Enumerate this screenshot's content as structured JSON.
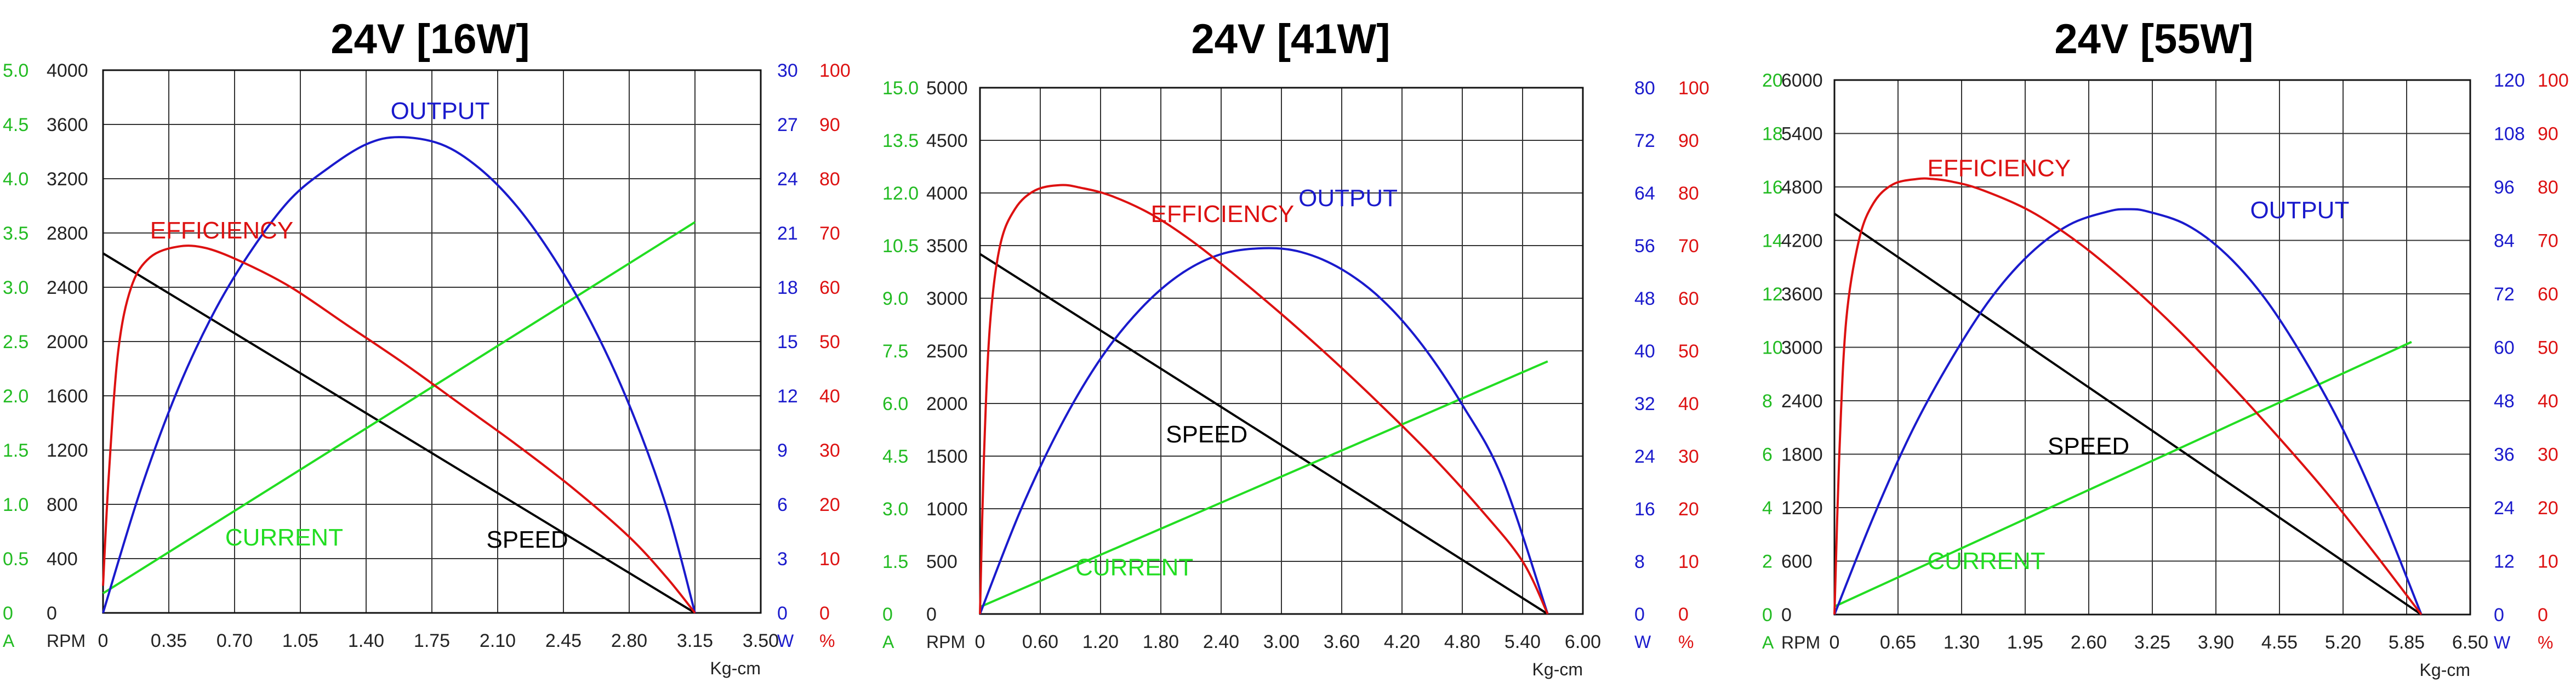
{
  "chart_data": [
    {
      "type": "line",
      "title": "24V [16W]",
      "xlabel": "Kg-cm",
      "x_ticks": [
        "0",
        "0.35",
        "0.70",
        "1.05",
        "1.40",
        "1.75",
        "2.10",
        "2.45",
        "2.80",
        "3.15",
        "3.50"
      ],
      "xlim": [
        0,
        3.5
      ],
      "left_axes": [
        {
          "unit": "A",
          "color": "#22bb22",
          "ticks": [
            "0",
            "0.5",
            "1.0",
            "1.5",
            "2.0",
            "2.5",
            "3.0",
            "3.5",
            "4.0",
            "4.5",
            "5.0"
          ],
          "range": [
            0,
            5
          ]
        },
        {
          "unit": "RPM",
          "color": "#222222",
          "ticks": [
            "0",
            "400",
            "800",
            "1200",
            "1600",
            "2000",
            "2400",
            "2800",
            "3200",
            "3600",
            "4000"
          ],
          "range": [
            0,
            4000
          ]
        }
      ],
      "right_axes": [
        {
          "unit": "W",
          "color": "#1a1acc",
          "ticks": [
            "0",
            "3",
            "6",
            "9",
            "12",
            "15",
            "18",
            "21",
            "24",
            "27",
            "30"
          ],
          "range": [
            0,
            30
          ]
        },
        {
          "unit": "%",
          "color": "#dd1111",
          "ticks": [
            "0",
            "10",
            "20",
            "30",
            "40",
            "50",
            "60",
            "70",
            "80",
            "90",
            "100"
          ],
          "range": [
            0,
            100
          ]
        }
      ],
      "series": [
        {
          "name": "SPEED",
          "axis": "RPM",
          "color": "#000000",
          "x": [
            0,
            3.15
          ],
          "y": [
            2650,
            0
          ]
        },
        {
          "name": "CURRENT",
          "axis": "A",
          "color": "#22dd22",
          "x": [
            0,
            3.15
          ],
          "y": [
            0.18,
            3.6
          ]
        },
        {
          "name": "OUTPUT",
          "axis": "W",
          "color": "#1a1acc",
          "x": [
            0,
            0.2,
            0.4,
            0.6,
            0.8,
            1.0,
            1.2,
            1.4,
            1.575,
            1.8,
            2.0,
            2.2,
            2.4,
            2.6,
            2.8,
            3.0,
            3.15
          ],
          "y": [
            0,
            6.8,
            12.4,
            16.8,
            20.2,
            22.9,
            24.6,
            25.9,
            26.3,
            25.9,
            24.6,
            22.5,
            19.6,
            16.0,
            11.5,
            5.8,
            0
          ]
        },
        {
          "name": "EFFICIENCY",
          "axis": "%",
          "color": "#dd1111",
          "x": [
            0,
            0.03,
            0.08,
            0.15,
            0.25,
            0.4,
            0.55,
            0.75,
            1.0,
            1.3,
            1.6,
            1.9,
            2.2,
            2.5,
            2.8,
            3.0,
            3.15
          ],
          "y": [
            5,
            25,
            48,
            60,
            65.5,
            67.5,
            67.2,
            64.5,
            60,
            53,
            46,
            38.5,
            31,
            23,
            14,
            6.5,
            0
          ]
        }
      ],
      "labels": [
        {
          "text": "EFFICIENCY",
          "series": "EFFICIENCY",
          "x": 0.25,
          "y": 69,
          "axis": "%"
        },
        {
          "text": "OUTPUT",
          "series": "OUTPUT",
          "x": 1.53,
          "y": 27.3,
          "axis": "W"
        },
        {
          "text": "CURRENT",
          "series": "CURRENT",
          "x": 0.65,
          "y": 0.62,
          "axis": "A"
        },
        {
          "text": "SPEED",
          "series": "SPEED",
          "x": 2.04,
          "y": 480,
          "axis": "RPM"
        }
      ]
    },
    {
      "type": "line",
      "title": "24V [41W]",
      "xlabel": "Kg-cm",
      "x_ticks": [
        "0",
        "0.60",
        "1.20",
        "1.80",
        "2.40",
        "3.00",
        "3.60",
        "4.20",
        "4.80",
        "5.40",
        "6.00"
      ],
      "xlim": [
        0,
        6.0
      ],
      "left_axes": [
        {
          "unit": "A",
          "color": "#22bb22",
          "ticks": [
            "0",
            "1.5",
            "3.0",
            "4.5",
            "6.0",
            "7.5",
            "9.0",
            "10.5",
            "12.0",
            "13.5",
            "15.0"
          ],
          "range": [
            0,
            15
          ]
        },
        {
          "unit": "RPM",
          "color": "#222222",
          "ticks": [
            "0",
            "500",
            "1000",
            "1500",
            "2000",
            "2500",
            "3000",
            "3500",
            "4000",
            "4500",
            "5000"
          ],
          "range": [
            0,
            5000
          ]
        }
      ],
      "right_axes": [
        {
          "unit": "W",
          "color": "#1a1acc",
          "ticks": [
            "0",
            "8",
            "16",
            "24",
            "32",
            "40",
            "48",
            "56",
            "64",
            "72",
            "80"
          ],
          "range": [
            0,
            80
          ]
        },
        {
          "unit": "%",
          "color": "#dd1111",
          "ticks": [
            "0",
            "10",
            "20",
            "30",
            "40",
            "50",
            "60",
            "70",
            "80",
            "90",
            "100"
          ],
          "range": [
            0,
            100
          ]
        }
      ],
      "series": [
        {
          "name": "SPEED",
          "axis": "RPM",
          "color": "#000000",
          "x": [
            0,
            5.65
          ],
          "y": [
            3420,
            0
          ]
        },
        {
          "name": "CURRENT",
          "axis": "A",
          "color": "#22dd22",
          "x": [
            0,
            5.65
          ],
          "y": [
            0.2,
            7.2
          ]
        },
        {
          "name": "OUTPUT",
          "axis": "W",
          "color": "#1a1acc",
          "x": [
            0,
            0.4,
            0.8,
            1.2,
            1.6,
            2.0,
            2.4,
            2.825,
            3.2,
            3.6,
            4.0,
            4.4,
            4.8,
            5.2,
            5.65
          ],
          "y": [
            0,
            15.6,
            28.5,
            38.8,
            46.4,
            51.7,
            54.7,
            55.6,
            55.0,
            52.4,
            47.8,
            40.9,
            31.8,
            20.6,
            0
          ]
        },
        {
          "name": "EFFICIENCY",
          "axis": "%",
          "color": "#dd1111",
          "x": [
            0,
            0.04,
            0.1,
            0.2,
            0.35,
            0.55,
            0.8,
            1.0,
            1.3,
            1.7,
            2.1,
            2.5,
            3.0,
            3.5,
            4.0,
            4.5,
            5.0,
            5.4,
            5.65
          ],
          "y": [
            0,
            30,
            55,
            70,
            77,
            80.5,
            81.5,
            81,
            79.5,
            76,
            71,
            65,
            57,
            48.5,
            39.5,
            30,
            19.5,
            10,
            0
          ]
        }
      ],
      "labels": [
        {
          "text": "EFFICIENCY",
          "series": "EFFICIENCY",
          "x": 1.7,
          "y": 74.5,
          "axis": "%"
        },
        {
          "text": "OUTPUT",
          "series": "OUTPUT",
          "x": 3.17,
          "y": 62,
          "axis": "W"
        },
        {
          "text": "CURRENT",
          "series": "CURRENT",
          "x": 0.95,
          "y": 1.1,
          "axis": "A"
        },
        {
          "text": "SPEED",
          "series": "SPEED",
          "x": 1.85,
          "y": 1630,
          "axis": "RPM"
        }
      ]
    },
    {
      "type": "line",
      "title": "24V [55W]",
      "xlabel": "Kg-cm",
      "x_ticks": [
        "0",
        "0.65",
        "1.30",
        "1.95",
        "2.60",
        "3.25",
        "3.90",
        "4.55",
        "5.20",
        "5.85",
        "6.50"
      ],
      "xlim": [
        0,
        6.5
      ],
      "left_axes": [
        {
          "unit": "A",
          "color": "#22bb22",
          "ticks": [
            "0",
            "2",
            "4",
            "6",
            "8",
            "10",
            "12",
            "14",
            "16",
            "18",
            "20"
          ],
          "range": [
            0,
            20
          ]
        },
        {
          "unit": "RPM",
          "color": "#222222",
          "ticks": [
            "0",
            "600",
            "1200",
            "1800",
            "2400",
            "3000",
            "3600",
            "4200",
            "4800",
            "5400",
            "6000"
          ],
          "range": [
            0,
            6000
          ]
        }
      ],
      "right_axes": [
        {
          "unit": "W",
          "color": "#1a1acc",
          "ticks": [
            "0",
            "12",
            "24",
            "36",
            "48",
            "60",
            "72",
            "84",
            "96",
            "108",
            "120"
          ],
          "range": [
            0,
            120
          ]
        },
        {
          "unit": "%",
          "color": "#dd1111",
          "ticks": [
            "0",
            "10",
            "20",
            "30",
            "40",
            "50",
            "60",
            "70",
            "80",
            "90",
            "100"
          ],
          "range": [
            0,
            100
          ]
        }
      ],
      "series": [
        {
          "name": "SPEED",
          "axis": "RPM",
          "color": "#000000",
          "x": [
            0,
            6.0
          ],
          "y": [
            4500,
            0
          ]
        },
        {
          "name": "CURRENT",
          "axis": "A",
          "color": "#22dd22",
          "x": [
            0,
            5.9
          ],
          "y": [
            0.3,
            10.2
          ]
        },
        {
          "name": "OUTPUT",
          "axis": "W",
          "color": "#1a1acc",
          "x": [
            0,
            0.4,
            0.8,
            1.2,
            1.6,
            2.0,
            2.4,
            2.8,
            3.0,
            3.2,
            3.6,
            4.0,
            4.4,
            4.8,
            5.2,
            5.6,
            6.0
          ],
          "y": [
            0,
            22,
            41.5,
            57.5,
            71,
            81,
            87.5,
            90.5,
            91,
            90.5,
            87.5,
            81,
            71,
            57.5,
            41.5,
            22,
            0
          ]
        },
        {
          "name": "EFFICIENCY",
          "axis": "%",
          "color": "#dd1111",
          "x": [
            0,
            0.05,
            0.12,
            0.25,
            0.4,
            0.6,
            0.85,
            1.0,
            1.2,
            1.5,
            2.0,
            2.5,
            3.0,
            3.5,
            4.0,
            4.5,
            5.0,
            5.5,
            6.0
          ],
          "y": [
            0,
            30,
            55,
            70,
            77,
            80.5,
            81.5,
            81.5,
            81,
            79.5,
            75.5,
            69.5,
            62,
            53.5,
            44,
            34,
            23.5,
            12,
            0
          ]
        }
      ],
      "labels": [
        {
          "text": "EFFICIENCY",
          "series": "EFFICIENCY",
          "x": 0.95,
          "y": 82,
          "axis": "%"
        },
        {
          "text": "OUTPUT",
          "series": "OUTPUT",
          "x": 4.25,
          "y": 89,
          "axis": "W"
        },
        {
          "text": "CURRENT",
          "series": "CURRENT",
          "x": 0.95,
          "y": 1.7,
          "axis": "A"
        },
        {
          "text": "SPEED",
          "series": "SPEED",
          "x": 2.18,
          "y": 1800,
          "axis": "RPM"
        }
      ]
    }
  ]
}
